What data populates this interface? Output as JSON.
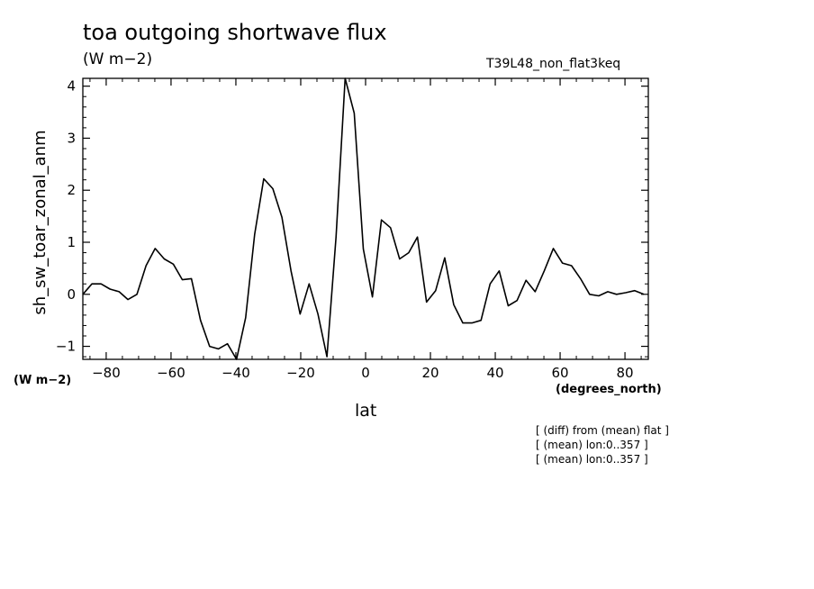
{
  "header": {
    "title": "toa outgoing shortwave flux",
    "units": "(W m−2)",
    "run_id": "T39L48_non_flat3keq"
  },
  "axis_units": {
    "y": "(W m−2)",
    "x": "(degrees_north)"
  },
  "notes": [
    "[ (diff) from (mean) flat ]",
    "[ (mean) lon:0..357 ]",
    "[ (mean) lon:0..357 ]"
  ],
  "chart_data": {
    "type": "line",
    "title": "toa outgoing shortwave flux",
    "xlabel": "lat",
    "ylabel": "sh_sw_toar_zonal_anm",
    "xlim": [
      -87.2,
      87.2
    ],
    "ylim": [
      -1.25,
      4.15
    ],
    "x_ticks": [
      -80,
      -60,
      -40,
      -20,
      0,
      20,
      40,
      60,
      80
    ],
    "x_tick_labels": [
      "−80",
      "−60",
      "−40",
      "−20",
      "0",
      "20",
      "40",
      "60",
      "80"
    ],
    "y_ticks": [
      -1,
      0,
      1,
      2,
      3,
      4
    ],
    "y_tick_labels": [
      "−1",
      "0",
      "1",
      "2",
      "3",
      "4"
    ],
    "grid": false,
    "series": [
      {
        "x": [
          -87.2,
          -84.4,
          -81.6,
          -78.8,
          -76.0,
          -73.3,
          -70.5,
          -67.7,
          -64.9,
          -62.1,
          -59.3,
          -56.5,
          -53.7,
          -50.9,
          -48.1,
          -45.4,
          -42.6,
          -39.8,
          -37.0,
          -34.2,
          -31.4,
          -28.6,
          -25.8,
          -23.0,
          -20.2,
          -17.4,
          -14.7,
          -11.9,
          -9.1,
          -6.3,
          -3.5,
          -0.7,
          2.1,
          4.9,
          7.7,
          10.5,
          13.3,
          16.0,
          18.8,
          21.6,
          24.4,
          27.2,
          30.0,
          32.8,
          35.6,
          38.4,
          41.2,
          44.0,
          46.7,
          49.5,
          52.3,
          55.1,
          57.9,
          60.7,
          63.5,
          66.3,
          69.1,
          71.9,
          74.7,
          77.4,
          80.2,
          83.0,
          85.8
        ],
        "values": [
          0.0,
          0.2,
          0.2,
          0.1,
          0.05,
          -0.1,
          0.0,
          0.55,
          0.88,
          0.68,
          0.58,
          0.28,
          0.3,
          -0.5,
          -1.0,
          -1.05,
          -0.95,
          -1.25,
          -0.45,
          1.15,
          2.22,
          2.03,
          1.48,
          0.45,
          -0.38,
          0.2,
          -0.38,
          -1.2,
          1.1,
          4.15,
          3.48,
          0.87,
          -0.05,
          1.43,
          1.28,
          0.68,
          0.8,
          1.1,
          -0.15,
          0.07,
          0.7,
          -0.2,
          -0.55,
          -0.55,
          -0.5,
          0.2,
          0.45,
          -0.22,
          -0.12,
          0.27,
          0.05,
          0.45,
          0.88,
          0.6,
          0.55,
          0.3,
          0.0,
          -0.03,
          0.05,
          0.0,
          0.03,
          0.07,
          0.0
        ]
      }
    ]
  }
}
